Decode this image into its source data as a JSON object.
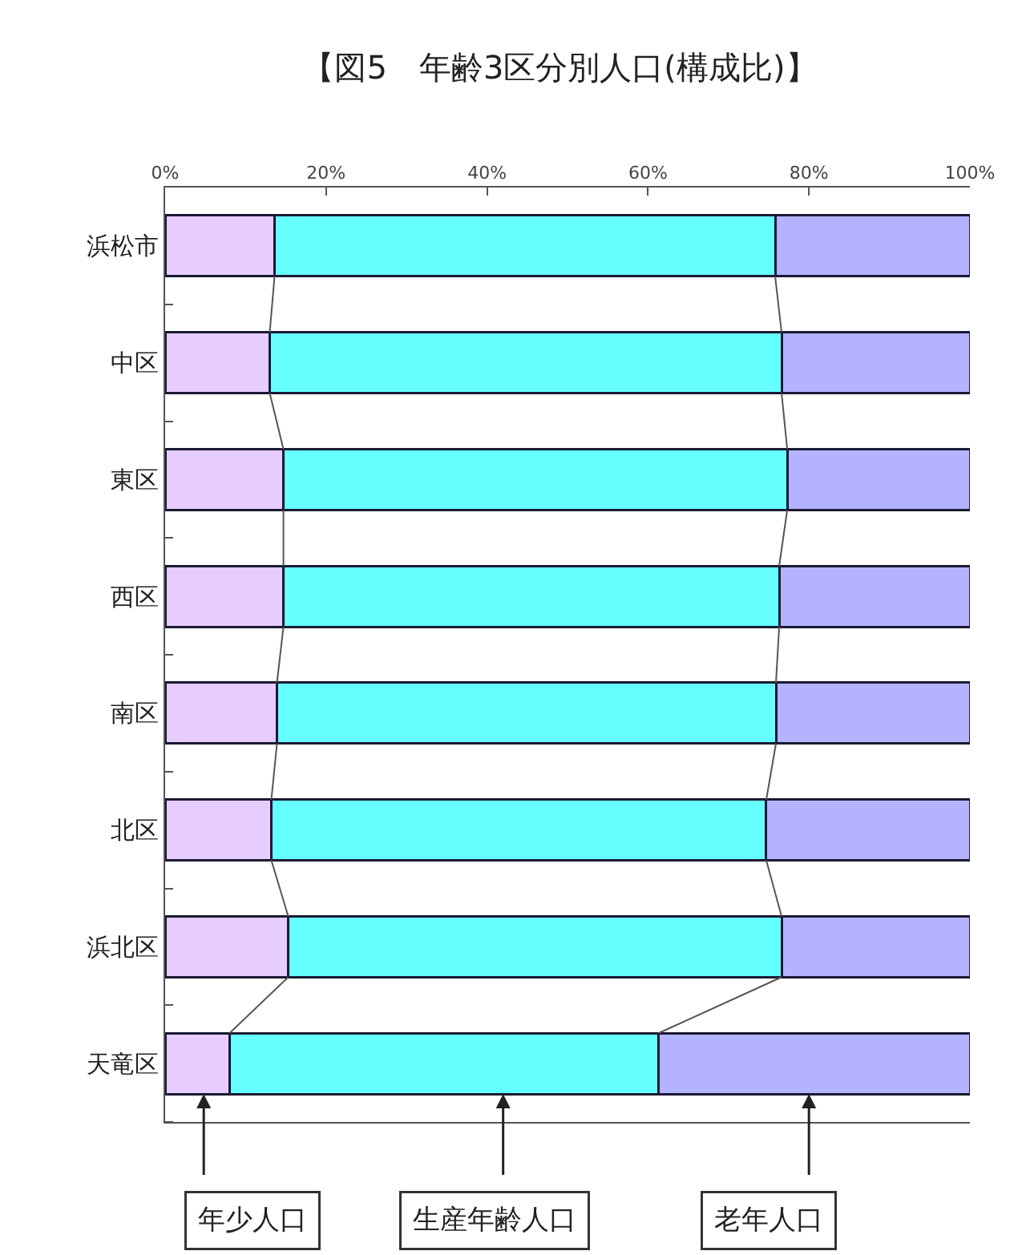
{
  "chart_data": {
    "type": "bar",
    "orientation": "horizontal",
    "stacked": true,
    "title": "【図5　年齢3区分別人口(構成比)】",
    "categories": [
      "浜松市",
      "中区",
      "東区",
      "西区",
      "南区",
      "北区",
      "浜北区",
      "天竜区"
    ],
    "series": [
      {
        "name": "年少人口",
        "color": "#e6ccff",
        "values": [
          13.6,
          13.0,
          14.7,
          14.7,
          13.9,
          13.2,
          15.3,
          8.0
        ]
      },
      {
        "name": "生産年齢人口",
        "color": "#66ffff",
        "values": [
          62.2,
          63.6,
          62.6,
          61.6,
          62.0,
          61.5,
          61.3,
          53.3
        ]
      },
      {
        "name": "老年人口",
        "color": "#b3b3ff",
        "values": [
          24.2,
          23.4,
          22.7,
          23.7,
          24.1,
          25.3,
          23.4,
          38.7
        ]
      }
    ],
    "xlim": [
      0,
      100
    ],
    "xticks": [
      {
        "value": 0,
        "label": "0%"
      },
      {
        "value": 20,
        "label": "20%"
      },
      {
        "value": 40,
        "label": "40%"
      },
      {
        "value": 60,
        "label": "60%"
      },
      {
        "value": 80,
        "label": "80%"
      },
      {
        "value": 100,
        "label": "100%"
      }
    ],
    "grid": false,
    "legend": "bottom"
  }
}
